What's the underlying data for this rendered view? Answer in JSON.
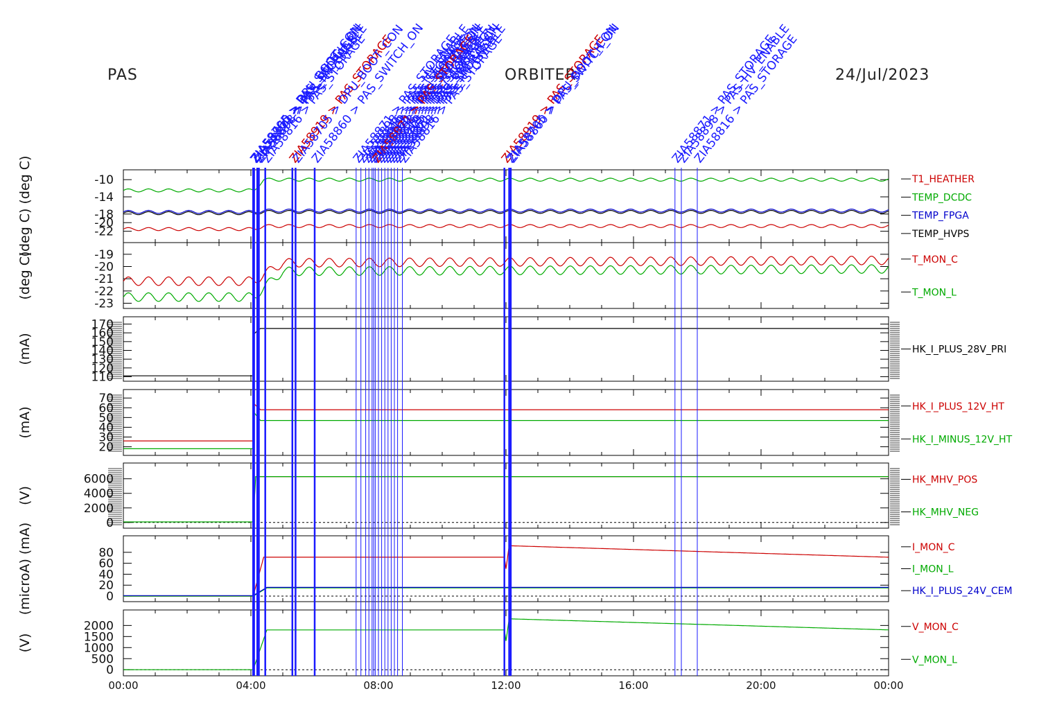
{
  "header": {
    "instrument": "PAS",
    "mission": "ORBITER",
    "date": "24/Jul/2023"
  },
  "colors": {
    "red": "#cc0000",
    "green": "#00aa00",
    "blue": "#0000cc",
    "black": "#000000",
    "olive": "#807000",
    "event": "#1a1aff"
  },
  "x_axis": {
    "ticks": [
      "00:00",
      "04:00",
      "08:00",
      "12:00",
      "16:00",
      "20:00",
      "00:00"
    ],
    "range_hours": [
      0,
      24
    ]
  },
  "events": {
    "labels": [
      "ZIA58705 > DPU_BOOT_CON",
      "ZIA58860 > PAS_SWITCH_ON",
      "ZIA58871 > PAS_STORAGE",
      "ZIA58898 > PAS_HV_ENABLE",
      "ZIA58816 > PAS_STORAGE",
      "ZIA58919 > PAS_STORAGE"
    ],
    "times_hours": [
      4.07,
      4.1,
      4.2,
      4.25,
      4.45,
      5.3,
      5.4,
      6.0,
      7.3,
      7.45,
      7.6,
      7.7,
      7.8,
      7.85,
      7.9,
      8.0,
      8.1,
      8.2,
      8.3,
      8.4,
      8.5,
      8.6,
      8.75,
      11.95,
      12.1,
      12.15,
      17.3,
      17.5,
      18.0
    ]
  },
  "chart_data": [
    {
      "type": "line",
      "ylabel": "(deg C) (deg C)",
      "yticks": [
        -10,
        -14,
        -18,
        -20,
        -22
      ],
      "ylim": [
        -24,
        -9
      ],
      "series": [
        {
          "name": "T1_HEATHER",
          "color": "#cc0000",
          "x": [
            0,
            4.1,
            4.4,
            24
          ],
          "y": [
            -21.5,
            -21.5,
            -20.8,
            -20.8
          ]
        },
        {
          "name": "TEMP_DCDC",
          "color": "#00aa00",
          "x": [
            0,
            4.1,
            4.4,
            24
          ],
          "y": [
            -12.5,
            -12.5,
            -10,
            -10
          ]
        },
        {
          "name": "TEMP_FPGA",
          "color": "#0000cc",
          "x": [
            0,
            4.1,
            4.4,
            24
          ],
          "y": [
            -17.5,
            -17.5,
            -17.2,
            -17.2
          ]
        },
        {
          "name": "TEMP_HVPS",
          "color": "#000000",
          "x": [
            0,
            4.1,
            4.4,
            24
          ],
          "y": [
            -17.8,
            -17.8,
            -17.5,
            -17.5
          ]
        }
      ]
    },
    {
      "type": "line",
      "ylabel": "(deg C)",
      "yticks": [
        -19,
        -20,
        -21,
        -22,
        -23
      ],
      "ylim": [
        -23.2,
        -18.5
      ],
      "series": [
        {
          "name": "T_MON_C",
          "color": "#cc0000",
          "x": [
            0,
            4.1,
            4.5,
            5.0,
            24
          ],
          "y": [
            -21.2,
            -21.2,
            -20.5,
            -19.7,
            -19.5
          ]
        },
        {
          "name": "T_MON_L",
          "color": "#00aa00",
          "x": [
            0,
            4.1,
            4.5,
            5.0,
            24
          ],
          "y": [
            -22.5,
            -22.5,
            -21.5,
            -20.4,
            -20.2
          ]
        }
      ]
    },
    {
      "type": "line",
      "ylabel": "(mA)",
      "yticks": [
        170,
        160,
        150,
        140,
        130,
        120,
        110
      ],
      "ylim": [
        108,
        172
      ],
      "series": [
        {
          "name": "HK_I_PLUS_28V_PRI",
          "color": "#000000",
          "x": [
            0,
            4.07,
            4.1,
            4.3,
            24
          ],
          "y": [
            111,
            111,
            159,
            165,
            165
          ]
        }
      ]
    },
    {
      "type": "line",
      "ylabel": "(mA)",
      "yticks": [
        70,
        60,
        50,
        40,
        30,
        20
      ],
      "ylim": [
        14,
        73
      ],
      "series": [
        {
          "name": "HK_I_PLUS_12V_HT",
          "color": "#cc0000",
          "x": [
            0,
            4.07,
            4.1,
            4.3,
            24
          ],
          "y": [
            26,
            26,
            64,
            58,
            58
          ]
        },
        {
          "name": "HK_I_MINUS_12V_HT",
          "color": "#00aa00",
          "x": [
            0,
            4.07,
            4.1,
            4.3,
            24
          ],
          "y": [
            18,
            18,
            55,
            47,
            47
          ]
        }
      ]
    },
    {
      "type": "line",
      "ylabel": "(V)",
      "yticks": [
        6000,
        4000,
        2000,
        0
      ],
      "ylim": [
        -400,
        7400
      ],
      "series": [
        {
          "name": "HK_MHV_POS",
          "color": "#cc0000",
          "x": [
            4.15,
            24
          ],
          "y": [
            6300,
            6300
          ]
        },
        {
          "name": "HK_MHV_NEG",
          "color": "#00aa00",
          "x": [
            0,
            4.07,
            4.15,
            24
          ],
          "y": [
            80,
            80,
            6300,
            6300
          ]
        }
      ]
    },
    {
      "type": "line",
      "ylabel": "(microA) (mA)",
      "yticks": [
        80,
        60,
        40,
        20,
        0
      ],
      "ylim": [
        -5,
        100
      ],
      "series": [
        {
          "name": "I_MON_C",
          "color": "#cc0000",
          "x": [
            0,
            4.07,
            4.4,
            11.95,
            12.0,
            12.1,
            24
          ],
          "y": [
            0,
            0,
            71,
            71,
            50,
            92,
            71
          ]
        },
        {
          "name": "I_MON_L",
          "color": "#00aa00",
          "x": [
            0,
            4.07,
            4.5,
            24
          ],
          "y": [
            0,
            0,
            15,
            15
          ]
        },
        {
          "name": "HK_I_PLUS_24V_CEM",
          "color": "#0000cc",
          "x": [
            0,
            4.07,
            4.5,
            24
          ],
          "y": [
            1,
            1,
            16,
            16
          ]
        }
      ]
    },
    {
      "type": "line",
      "ylabel": "(V)",
      "yticks": [
        2000,
        1500,
        1000,
        500,
        0
      ],
      "ylim": [
        -150,
        2450
      ],
      "series": [
        {
          "name": "V_MON_C",
          "color": "#cc0000",
          "x": [],
          "y": []
        },
        {
          "name": "V_MON_L",
          "color": "#00aa00",
          "x": [
            0,
            4.07,
            4.5,
            11.95,
            12.0,
            12.1,
            24
          ],
          "y": [
            0,
            0,
            1800,
            1800,
            1300,
            2300,
            1800
          ]
        }
      ]
    }
  ]
}
